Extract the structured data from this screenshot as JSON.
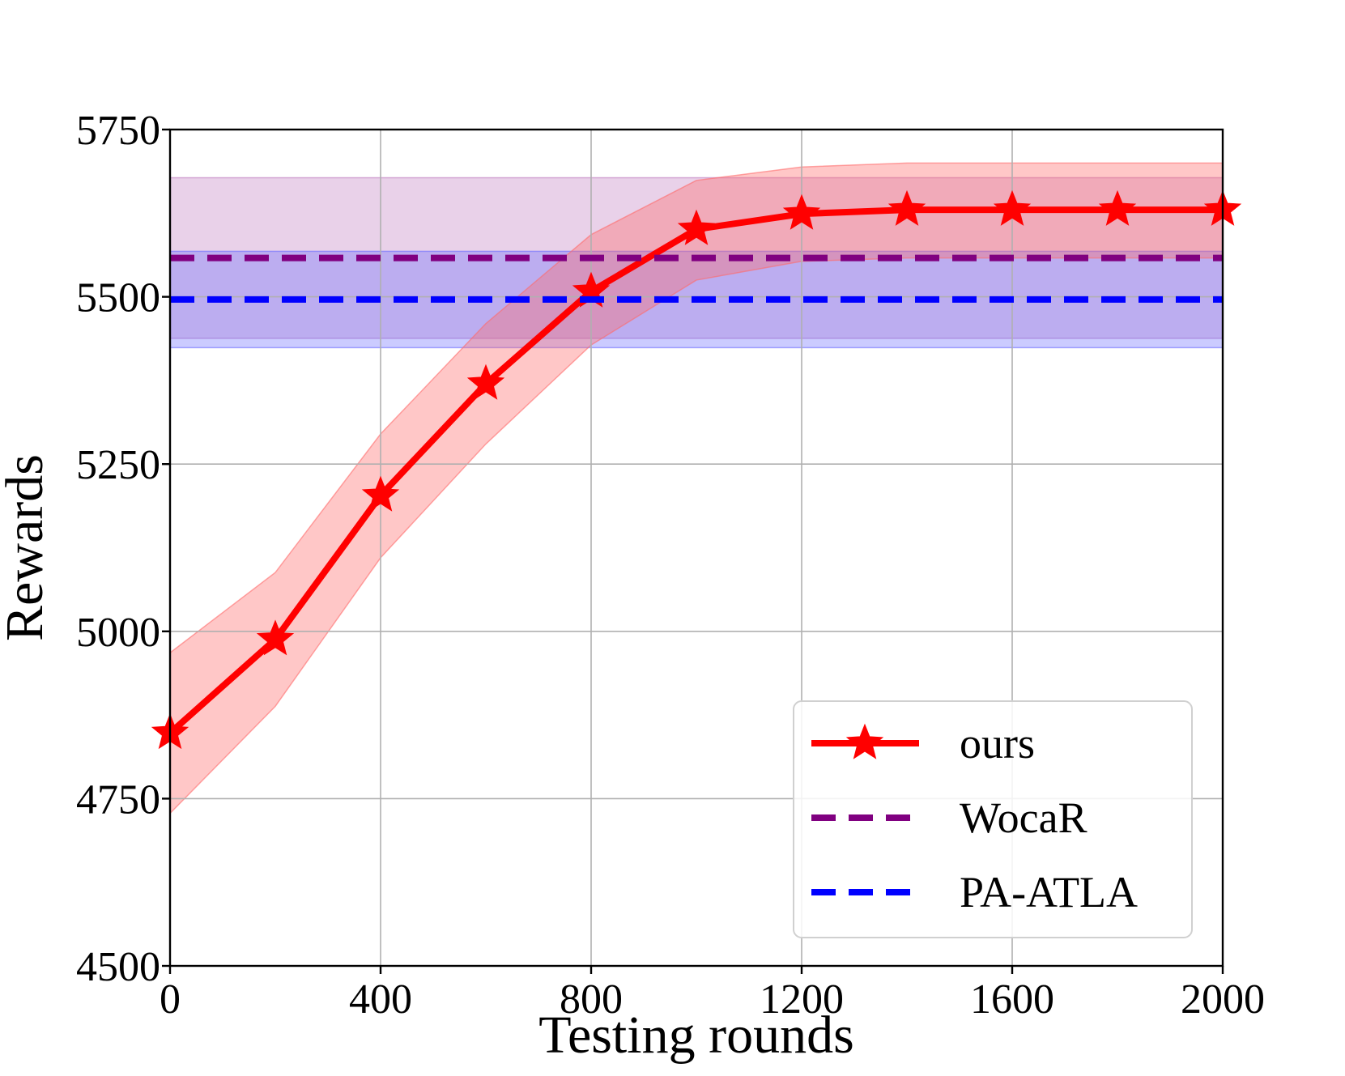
{
  "chart_data": {
    "type": "line",
    "title": "",
    "xlabel": "Testing rounds",
    "ylabel": "Rewards",
    "xlim": [
      0,
      2000
    ],
    "ylim": [
      4500,
      5750
    ],
    "xticks": [
      0,
      400,
      800,
      1200,
      1600,
      2000
    ],
    "xtick_labels": [
      "0",
      "400",
      "800",
      "1200",
      "1600",
      "2000"
    ],
    "yticks": [
      4500,
      4750,
      5000,
      5250,
      5500,
      5750
    ],
    "ytick_labels": [
      "4500",
      "4750",
      "5000",
      "5250",
      "5500",
      "5750"
    ],
    "grid": true,
    "legend_position": "lower-right",
    "series": [
      {
        "name": "ours",
        "color": "#ff0000",
        "style": "solid",
        "marker": "star",
        "x": [
          0,
          200,
          400,
          600,
          800,
          1000,
          1200,
          1400,
          1600,
          1800,
          2000
        ],
        "values": [
          4848,
          4988,
          5203,
          5370,
          5508,
          5601,
          5624,
          5630,
          5630,
          5630,
          5630
        ],
        "upper": [
          4968,
          5088,
          5295,
          5460,
          5593,
          5674,
          5694,
          5700,
          5700,
          5700,
          5700
        ],
        "lower": [
          4728,
          4888,
          5110,
          5280,
          5428,
          5525,
          5553,
          5558,
          5558,
          5558,
          5558
        ],
        "band_color": "#ff6b6b"
      },
      {
        "name": "WocaR",
        "color": "#800080",
        "style": "dashed",
        "value": 5558,
        "upper": 5678,
        "lower": 5438,
        "band_color": "#c07cc0"
      },
      {
        "name": "PA-ATLA",
        "color": "#0000ff",
        "style": "dashed",
        "value": 5496,
        "upper": 5568,
        "lower": 5424,
        "band_color": "#6a6aff"
      }
    ]
  }
}
